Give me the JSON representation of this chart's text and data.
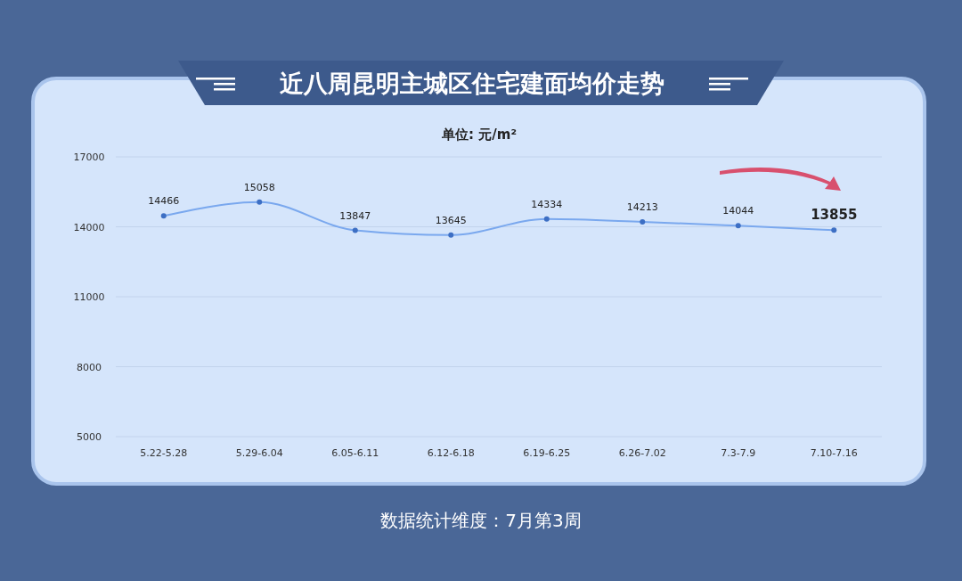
{
  "chart_data": {
    "type": "line",
    "title": "近八周昆明主城区住宅建面均价走势",
    "subtitle": "单位: 元/m²",
    "categories": [
      "5.22-5.28",
      "5.29-6.04",
      "6.05-6.11",
      "6.12-6.18",
      "6.19-6.25",
      "6.26-7.02",
      "7.3-7.9",
      "7.10-7.16"
    ],
    "series": [
      {
        "color": "#7aa8ee",
        "values": [
          14466,
          15058,
          13847,
          13645,
          14334,
          14213,
          14044,
          13855
        ]
      }
    ],
    "ylim": [
      5000,
      17000
    ],
    "yticks": [
      5000,
      8000,
      11000,
      14000,
      17000
    ],
    "grid": "y",
    "marker": "circle",
    "line_style": "solid",
    "data_labels": true,
    "annotations": [
      "数据统计维度：7月第3周"
    ]
  }
}
